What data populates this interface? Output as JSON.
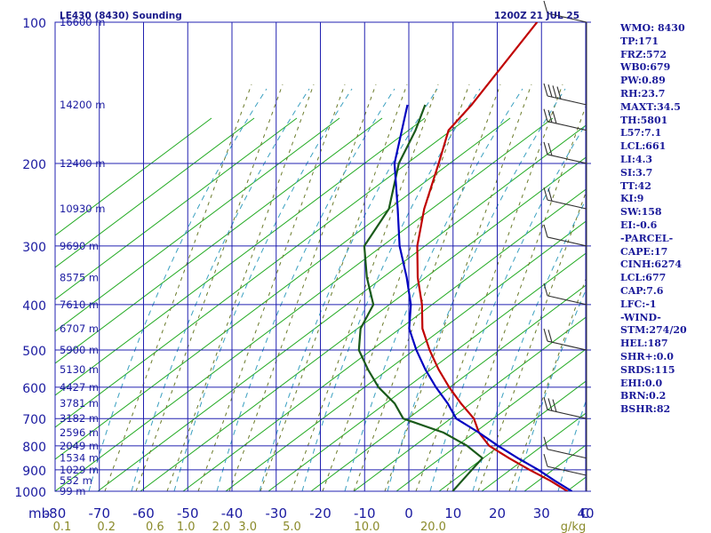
{
  "header": {
    "station": "LE430 (8430) Sounding",
    "time": "1200Z 21 JUL 25"
  },
  "indices": [
    "WMO: 8430",
    "TP:171",
    "FRZ:572",
    "WB0:679",
    "PW:0.89",
    "RH:23.7",
    "MAXT:34.5",
    "TH:5801",
    "L57:7.1",
    "LCL:661",
    "LI:4.3",
    "SI:3.7",
    "TT:42",
    "KI:9",
    "SW:158",
    "EI:-0.6",
    "-PARCEL-",
    "CAPE:17",
    "CINH:6274",
    "LCL:677",
    "CAP:7.6",
    "LFC:-1",
    "-WIND-",
    "STM:274/20",
    "HEL:187",
    "SHR+:0.0",
    "SRDS:115",
    "EHI:0.0",
    "BRN:0.2",
    "BSHR:82"
  ],
  "colors": {
    "axis": "#1a1aa0",
    "grid": "#2020b0",
    "adiabat": "#22aa22",
    "temp": "#c00000",
    "dew": "#1a5a1a",
    "parcel": "#0000c0",
    "mixing": "#6a7a2a",
    "moist": "#3aa0c0",
    "wind": "#303030"
  },
  "chart_data": {
    "type": "line",
    "title": "LE430 (8430) Sounding",
    "subtitle": "1200Z 21 JUL 25",
    "x_unit": "C",
    "y_unit": "mb",
    "xlim": [
      -80,
      0
    ],
    "pressure_levels": [
      100,
      200,
      300,
      400,
      500,
      600,
      700,
      800,
      900,
      1000
    ],
    "pressure_label_levels": [
      100,
      200,
      300,
      400,
      500,
      600,
      700,
      800,
      900,
      1000
    ],
    "x_ticks": [
      -80,
      -70,
      -60,
      -50,
      -40,
      -30,
      -20,
      -10,
      0,
      10,
      20,
      30,
      40
    ],
    "x_tick_labels": [
      "-80",
      "-70",
      "-60",
      "-50",
      "-40",
      "-30",
      "-20",
      "-10",
      "0",
      "10",
      "20",
      "30",
      "40"
    ],
    "mixing_ratio_labels": [
      "0.1",
      "0.2",
      "0.6",
      "1.0",
      "2.0",
      "3.0",
      "5.0",
      "10.0",
      "20.0"
    ],
    "mixing_ratio_label_x": [
      -80,
      -70,
      -59,
      -52,
      -44,
      -38,
      -28,
      -11,
      4
    ],
    "axis_unit_labels": {
      "y": "mb",
      "x": "C",
      "mixing": "g/kg"
    },
    "height_labels": [
      {
        "p": 100,
        "text": "16600 m"
      },
      {
        "p": 150,
        "text": "14200 m"
      },
      {
        "p": 200,
        "text": "12400 m"
      },
      {
        "p": 250,
        "text": "10930 m"
      },
      {
        "p": 300,
        "text": "9690 m"
      },
      {
        "p": 350,
        "text": "8575 m"
      },
      {
        "p": 400,
        "text": "7610 m"
      },
      {
        "p": 450,
        "text": "6707 m"
      },
      {
        "p": 500,
        "text": "5900 m"
      },
      {
        "p": 550,
        "text": "5130 m"
      },
      {
        "p": 600,
        "text": "4427 m"
      },
      {
        "p": 650,
        "text": "3781 m"
      },
      {
        "p": 700,
        "text": "3182 m"
      },
      {
        "p": 750,
        "text": "2596 m"
      },
      {
        "p": 800,
        "text": "2049 m"
      },
      {
        "p": 850,
        "text": "1534 m"
      },
      {
        "p": 900,
        "text": "1029 m"
      },
      {
        "p": 950,
        "text": "552 m"
      },
      {
        "p": 1000,
        "text": "99 m"
      }
    ],
    "series": [
      {
        "key": "temperature",
        "points": [
          [
            100,
            -66.5
          ],
          [
            150,
            -64.5
          ],
          [
            170,
            -64.5
          ],
          [
            200,
            -60
          ],
          [
            250,
            -54
          ],
          [
            300,
            -48
          ],
          [
            350,
            -41.5
          ],
          [
            400,
            -35
          ],
          [
            450,
            -30
          ],
          [
            500,
            -24
          ],
          [
            550,
            -18
          ],
          [
            600,
            -12
          ],
          [
            650,
            -6
          ],
          [
            700,
            0
          ],
          [
            750,
            4
          ],
          [
            800,
            9
          ],
          [
            850,
            16
          ],
          [
            900,
            23
          ],
          [
            950,
            30
          ],
          [
            1000,
            36
          ]
        ]
      },
      {
        "key": "dewpoint",
        "points": [
          [
            150,
            -75
          ],
          [
            170,
            -72
          ],
          [
            200,
            -69
          ],
          [
            250,
            -62
          ],
          [
            300,
            -60
          ],
          [
            350,
            -53
          ],
          [
            400,
            -46
          ],
          [
            450,
            -44
          ],
          [
            500,
            -40
          ],
          [
            550,
            -34
          ],
          [
            600,
            -28
          ],
          [
            650,
            -21
          ],
          [
            700,
            -16
          ],
          [
            750,
            -4
          ],
          [
            800,
            4
          ],
          [
            850,
            10
          ],
          [
            900,
            10
          ],
          [
            950,
            10
          ],
          [
            1000,
            10
          ]
        ]
      },
      {
        "key": "parcel",
        "points": [
          [
            150,
            -79
          ],
          [
            200,
            -70
          ],
          [
            250,
            -60
          ],
          [
            300,
            -52
          ],
          [
            350,
            -44
          ],
          [
            400,
            -37.5
          ],
          [
            450,
            -33
          ],
          [
            500,
            -27
          ],
          [
            550,
            -21
          ],
          [
            600,
            -15
          ],
          [
            650,
            -9
          ],
          [
            700,
            -4
          ],
          [
            750,
            4
          ],
          [
            800,
            11
          ],
          [
            850,
            18
          ],
          [
            900,
            25
          ],
          [
            950,
            31
          ],
          [
            1000,
            37
          ]
        ]
      }
    ],
    "winds": [
      {
        "p": 100,
        "barbs": 1,
        "pennant": false
      },
      {
        "p": 150,
        "barbs": 4,
        "pennant": false
      },
      {
        "p": 170,
        "barbs": 3,
        "pennant": false
      },
      {
        "p": 200,
        "barbs": 2,
        "pennant": false
      },
      {
        "p": 250,
        "barbs": 2,
        "pennant": false
      },
      {
        "p": 300,
        "barbs": 1,
        "pennant": false
      },
      {
        "p": 400,
        "barbs": 1,
        "pennant": false
      },
      {
        "p": 500,
        "barbs": 2,
        "pennant": false
      },
      {
        "p": 700,
        "barbs": 3,
        "pennant": false
      },
      {
        "p": 850,
        "barbs": 1,
        "pennant": false
      },
      {
        "p": 925,
        "barbs": 1,
        "pennant": false
      }
    ],
    "grid": true
  }
}
